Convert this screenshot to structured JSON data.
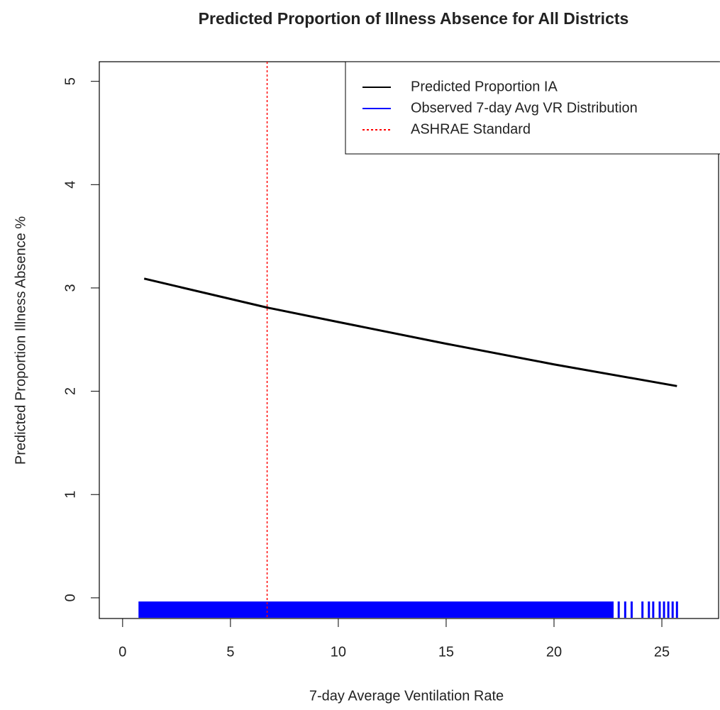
{
  "chart_data": {
    "type": "line",
    "title": "Predicted Proportion of Illness Absence for All Districts",
    "x_label": "7-day Average Ventilation Rate",
    "y_label": "Predicted Proportion Illness Absence %",
    "xlim": [
      -1.08,
      27.63
    ],
    "ylim": [
      -0.2,
      5.19
    ],
    "xticks": [
      0,
      5,
      10,
      15,
      20,
      25
    ],
    "yticks": [
      0,
      1,
      2,
      3,
      4,
      5
    ],
    "legend": "topright",
    "series": [
      {
        "name": "Predicted Proportion IA",
        "color": "#000000",
        "kind": "line",
        "x": [
          1,
          6.7,
          10,
          15,
          20,
          25.7
        ],
        "values": [
          3.09,
          2.81,
          2.67,
          2.46,
          2.26,
          2.05
        ]
      },
      {
        "name": "Observed 7-day Avg VR Distribution",
        "color": "#0000ff",
        "kind": "rug",
        "x": [
          1,
          1.5,
          2,
          2.5,
          3,
          3.5,
          4,
          4.5,
          5,
          5.5,
          6,
          6.5,
          7,
          7.5,
          8,
          8.5,
          9,
          9.5,
          10,
          10.5,
          11,
          11.5,
          12,
          12.5,
          13,
          13.5,
          14,
          14.5,
          15,
          15.5,
          16,
          16.5,
          17,
          17.5,
          18,
          18.5,
          19,
          19.5,
          20,
          20.5,
          21,
          21.5,
          22,
          22.5,
          23,
          23.3,
          23.6,
          24.1,
          24.4,
          24.6,
          24.9,
          25.1,
          25.3,
          25.5,
          25.7
        ]
      },
      {
        "name": "ASHRAE Standard",
        "color": "#ff0000",
        "kind": "vline",
        "x": [
          6.7
        ]
      }
    ]
  }
}
